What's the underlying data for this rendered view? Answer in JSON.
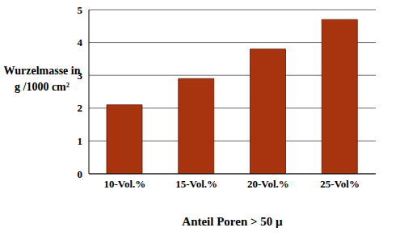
{
  "chart_data": {
    "type": "bar",
    "categories": [
      "10-Vol.%",
      "15-Vol.%",
      "20-Vol.%",
      "25-Vol%"
    ],
    "values": [
      2.1,
      2.9,
      3.8,
      4.7
    ],
    "color": "#a8330f",
    "xlabel": "Anteil Poren > 50 µ",
    "ylabel": "Wurzelmasse in\ng /1000 cm²",
    "ylim": [
      0,
      5
    ],
    "yticks": [
      0,
      1,
      2,
      3,
      4,
      5
    ],
    "grid": true
  }
}
